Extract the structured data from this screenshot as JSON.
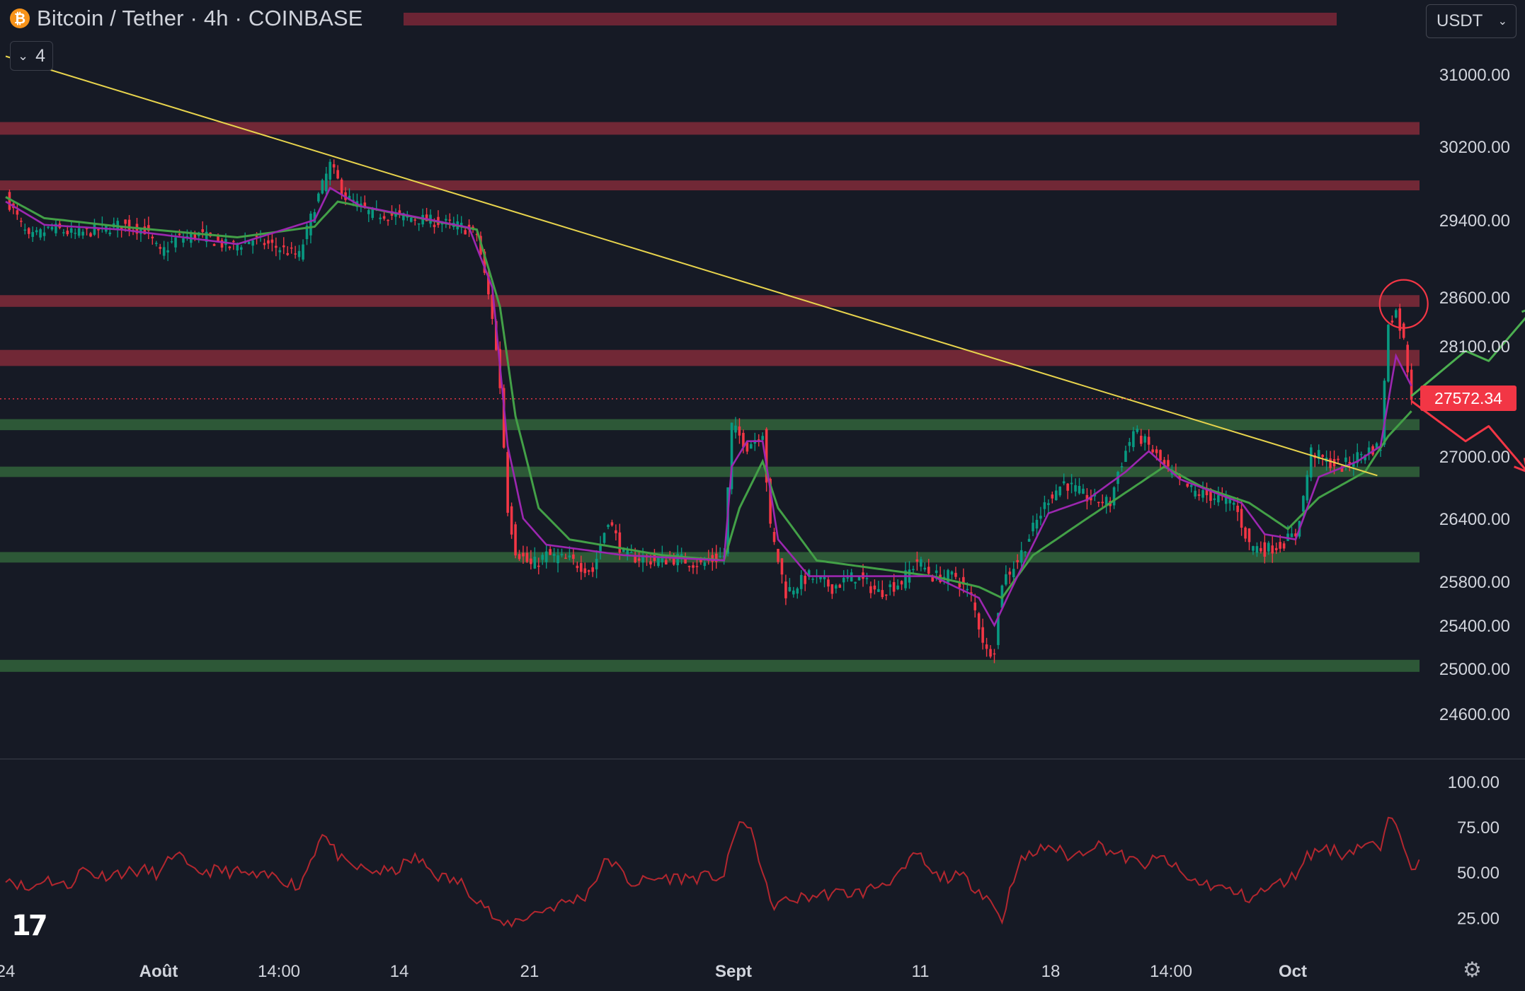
{
  "header": {
    "symbol_title": "Bitcoin / Tether · 4h · COINBASE",
    "collapse_count": "4",
    "coin_icon": "bitcoin-icon",
    "unit_selector": "USDT"
  },
  "colors": {
    "background": "#161a25",
    "up_candle": "#089981",
    "down_candle": "#f23645",
    "resistance_zone": "#7b2a38",
    "support_zone": "#2e5c38",
    "trendline": "#e8d44d",
    "ema_fast": "#9c27b0",
    "ema_slow": "#43a047",
    "rsi_line": "#b3272f"
  },
  "chart_data": [
    {
      "type": "candlestick",
      "timeframe": "4h",
      "price_axis": {
        "ticks": [
          "31000.00",
          "30200.00",
          "29400.00",
          "28600.00",
          "28100.00",
          "27000.00",
          "26400.00",
          "25800.00",
          "25400.00",
          "25000.00",
          "24600.00"
        ],
        "current_price": "27572.34"
      },
      "time_axis": {
        "ticks": [
          "24",
          "Août",
          "14:00",
          "14",
          "21",
          "Sept",
          "11",
          "18",
          "14:00",
          "Oct"
        ]
      },
      "close_path": [
        [
          0,
          29650
        ],
        [
          6,
          29200
        ],
        [
          12,
          29320
        ],
        [
          18,
          29250
        ],
        [
          24,
          29300
        ],
        [
          30,
          29350
        ],
        [
          36,
          29300
        ],
        [
          40,
          29050
        ],
        [
          44,
          29200
        ],
        [
          50,
          29250
        ],
        [
          58,
          29120
        ],
        [
          64,
          29200
        ],
        [
          70,
          29120
        ],
        [
          76,
          29030
        ],
        [
          80,
          29550
        ],
        [
          84,
          30000
        ],
        [
          88,
          29650
        ],
        [
          94,
          29480
        ],
        [
          100,
          29450
        ],
        [
          106,
          29420
        ],
        [
          112,
          29380
        ],
        [
          118,
          29330
        ],
        [
          122,
          29250
        ],
        [
          126,
          28400
        ],
        [
          128,
          27700
        ],
        [
          130,
          26500
        ],
        [
          132,
          26100
        ],
        [
          136,
          25950
        ],
        [
          140,
          26050
        ],
        [
          146,
          26000
        ],
        [
          152,
          25900
        ],
        [
          156,
          26400
        ],
        [
          160,
          26050
        ],
        [
          168,
          26000
        ],
        [
          174,
          26020
        ],
        [
          180,
          25960
        ],
        [
          186,
          26050
        ],
        [
          188,
          27300
        ],
        [
          192,
          27100
        ],
        [
          196,
          27250
        ],
        [
          198,
          26300
        ],
        [
          202,
          25700
        ],
        [
          208,
          25850
        ],
        [
          214,
          25750
        ],
        [
          220,
          25850
        ],
        [
          226,
          25700
        ],
        [
          232,
          25800
        ],
        [
          236,
          26000
        ],
        [
          240,
          25850
        ],
        [
          246,
          25850
        ],
        [
          250,
          25650
        ],
        [
          254,
          25150
        ],
        [
          256,
          25200
        ],
        [
          258,
          25800
        ],
        [
          262,
          26000
        ],
        [
          266,
          26300
        ],
        [
          270,
          26600
        ],
        [
          274,
          26750
        ],
        [
          280,
          26600
        ],
        [
          286,
          26550
        ],
        [
          288,
          26850
        ],
        [
          292,
          27250
        ],
        [
          296,
          27100
        ],
        [
          300,
          26900
        ],
        [
          304,
          26750
        ],
        [
          308,
          26650
        ],
        [
          314,
          26600
        ],
        [
          318,
          26550
        ],
        [
          322,
          26150
        ],
        [
          326,
          26100
        ],
        [
          330,
          26150
        ],
        [
          334,
          26250
        ],
        [
          336,
          26600
        ],
        [
          338,
          27050
        ],
        [
          342,
          26950
        ],
        [
          346,
          26900
        ],
        [
          352,
          27050
        ],
        [
          356,
          27100
        ],
        [
          358,
          28350
        ],
        [
          360,
          28450
        ],
        [
          362,
          28150
        ],
        [
          364,
          27600
        ]
      ],
      "ema_fast_path": [
        [
          0,
          29600
        ],
        [
          10,
          29350
        ],
        [
          30,
          29300
        ],
        [
          60,
          29150
        ],
        [
          80,
          29400
        ],
        [
          84,
          29750
        ],
        [
          92,
          29550
        ],
        [
          120,
          29320
        ],
        [
          126,
          28700
        ],
        [
          130,
          27100
        ],
        [
          134,
          26400
        ],
        [
          140,
          26150
        ],
        [
          160,
          26050
        ],
        [
          186,
          26000
        ],
        [
          188,
          26900
        ],
        [
          192,
          27150
        ],
        [
          196,
          27150
        ],
        [
          200,
          26200
        ],
        [
          208,
          25850
        ],
        [
          240,
          25850
        ],
        [
          252,
          25650
        ],
        [
          256,
          25400
        ],
        [
          260,
          25700
        ],
        [
          270,
          26450
        ],
        [
          280,
          26580
        ],
        [
          290,
          26850
        ],
        [
          296,
          27050
        ],
        [
          304,
          26780
        ],
        [
          320,
          26550
        ],
        [
          326,
          26250
        ],
        [
          334,
          26200
        ],
        [
          340,
          26800
        ],
        [
          350,
          26950
        ],
        [
          356,
          27100
        ],
        [
          360,
          28000
        ],
        [
          364,
          27700
        ]
      ],
      "ema_slow_path": [
        [
          0,
          29650
        ],
        [
          10,
          29420
        ],
        [
          30,
          29330
        ],
        [
          60,
          29220
        ],
        [
          80,
          29330
        ],
        [
          86,
          29600
        ],
        [
          100,
          29480
        ],
        [
          122,
          29300
        ],
        [
          128,
          28500
        ],
        [
          132,
          27400
        ],
        [
          138,
          26500
        ],
        [
          146,
          26200
        ],
        [
          170,
          26050
        ],
        [
          186,
          26000
        ],
        [
          190,
          26500
        ],
        [
          196,
          26950
        ],
        [
          200,
          26500
        ],
        [
          210,
          26000
        ],
        [
          240,
          25850
        ],
        [
          252,
          25750
        ],
        [
          258,
          25650
        ],
        [
          266,
          26050
        ],
        [
          280,
          26400
        ],
        [
          292,
          26700
        ],
        [
          300,
          26900
        ],
        [
          310,
          26700
        ],
        [
          322,
          26550
        ],
        [
          332,
          26300
        ],
        [
          340,
          26600
        ],
        [
          352,
          26850
        ],
        [
          358,
          27200
        ],
        [
          364,
          27450
        ]
      ],
      "resistance_zones": [
        [
          30330,
          30470
        ],
        [
          29730,
          29830
        ],
        [
          28500,
          28620
        ],
        [
          27900,
          28060
        ]
      ],
      "support_zones": [
        [
          27260,
          27370
        ],
        [
          26800,
          26900
        ],
        [
          25980,
          26080
        ],
        [
          24970,
          25080
        ]
      ],
      "trendline": [
        [
          0,
          31200
        ],
        [
          346,
          26950
        ]
      ],
      "projection_up": [
        [
          364,
          27600
        ],
        [
          378,
          28050
        ],
        [
          384,
          27950
        ],
        [
          396,
          28500
        ]
      ],
      "projection_down": [
        [
          364,
          27550
        ],
        [
          378,
          27150
        ],
        [
          384,
          27300
        ],
        [
          394,
          26850
        ]
      ],
      "marked_high_circle": [
        362,
        28530
      ]
    },
    {
      "type": "line",
      "indicator": "RSI",
      "y_ticks": [
        "100.00",
        "75.00",
        "50.00",
        "25.00"
      ],
      "ylim": [
        15,
        100
      ],
      "path": [
        [
          0,
          48
        ],
        [
          6,
          40
        ],
        [
          10,
          47
        ],
        [
          16,
          42
        ],
        [
          20,
          52
        ],
        [
          24,
          48
        ],
        [
          30,
          50
        ],
        [
          36,
          51
        ],
        [
          40,
          49
        ],
        [
          44,
          62
        ],
        [
          48,
          50
        ],
        [
          54,
          51
        ],
        [
          60,
          50
        ],
        [
          66,
          47
        ],
        [
          70,
          48
        ],
        [
          76,
          42
        ],
        [
          80,
          62
        ],
        [
          82,
          73
        ],
        [
          84,
          65
        ],
        [
          88,
          54
        ],
        [
          94,
          51
        ],
        [
          100,
          50
        ],
        [
          106,
          58
        ],
        [
          112,
          48
        ],
        [
          118,
          44
        ],
        [
          124,
          32
        ],
        [
          128,
          20
        ],
        [
          140,
          30
        ],
        [
          150,
          37
        ],
        [
          156,
          58
        ],
        [
          162,
          44
        ],
        [
          170,
          47
        ],
        [
          178,
          47
        ],
        [
          186,
          48
        ],
        [
          190,
          80
        ],
        [
          194,
          68
        ],
        [
          198,
          32
        ],
        [
          204,
          35
        ],
        [
          212,
          38
        ],
        [
          222,
          39
        ],
        [
          232,
          49
        ],
        [
          236,
          61
        ],
        [
          240,
          48
        ],
        [
          248,
          47
        ],
        [
          254,
          37
        ],
        [
          258,
          24
        ],
        [
          262,
          55
        ],
        [
          270,
          65
        ],
        [
          276,
          58
        ],
        [
          282,
          66
        ],
        [
          288,
          60
        ],
        [
          294,
          54
        ],
        [
          300,
          58
        ],
        [
          306,
          46
        ],
        [
          314,
          42
        ],
        [
          322,
          36
        ],
        [
          328,
          42
        ],
        [
          334,
          48
        ],
        [
          336,
          58
        ],
        [
          342,
          64
        ],
        [
          346,
          60
        ],
        [
          352,
          66
        ],
        [
          356,
          63
        ],
        [
          358,
          77
        ],
        [
          360,
          79
        ],
        [
          364,
          55
        ],
        [
          366,
          54
        ]
      ]
    }
  ]
}
